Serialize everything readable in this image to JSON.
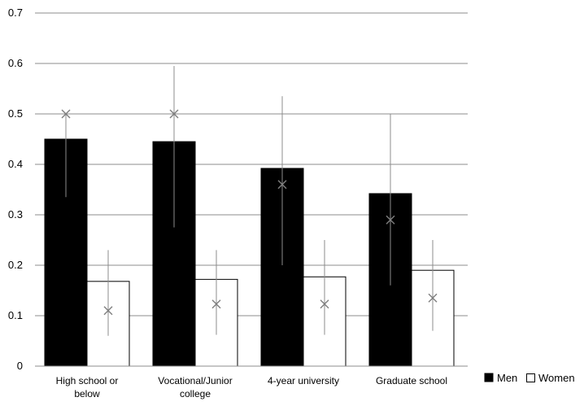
{
  "chart_data": {
    "type": "bar",
    "categories": [
      [
        "High school or",
        "below"
      ],
      [
        "Vocational/Junior",
        "college"
      ],
      [
        "4-year university"
      ],
      [
        "Graduate school"
      ]
    ],
    "series": [
      {
        "name": "Men",
        "color": "#000000",
        "values": [
          0.45,
          0.445,
          0.392,
          0.342
        ],
        "markers": [
          0.5,
          0.5,
          0.36,
          0.29
        ],
        "error_low": [
          0.335,
          0.275,
          0.2,
          0.16
        ],
        "error_high": [
          0.5,
          0.595,
          0.535,
          0.5
        ]
      },
      {
        "name": "Women",
        "color": "#ffffff",
        "values": [
          0.168,
          0.172,
          0.177,
          0.19
        ],
        "markers": [
          0.11,
          0.123,
          0.123,
          0.135
        ],
        "error_low": [
          0.06,
          0.062,
          0.062,
          0.07
        ],
        "error_high": [
          0.23,
          0.23,
          0.25,
          0.25
        ]
      }
    ],
    "ylim": [
      0,
      0.7
    ],
    "yticks": [
      "0",
      "0.1",
      "0.2",
      "0.3",
      "0.4",
      "0.5",
      "0.6",
      "0.7"
    ],
    "grid": true,
    "legend_position": "bottom-right"
  }
}
